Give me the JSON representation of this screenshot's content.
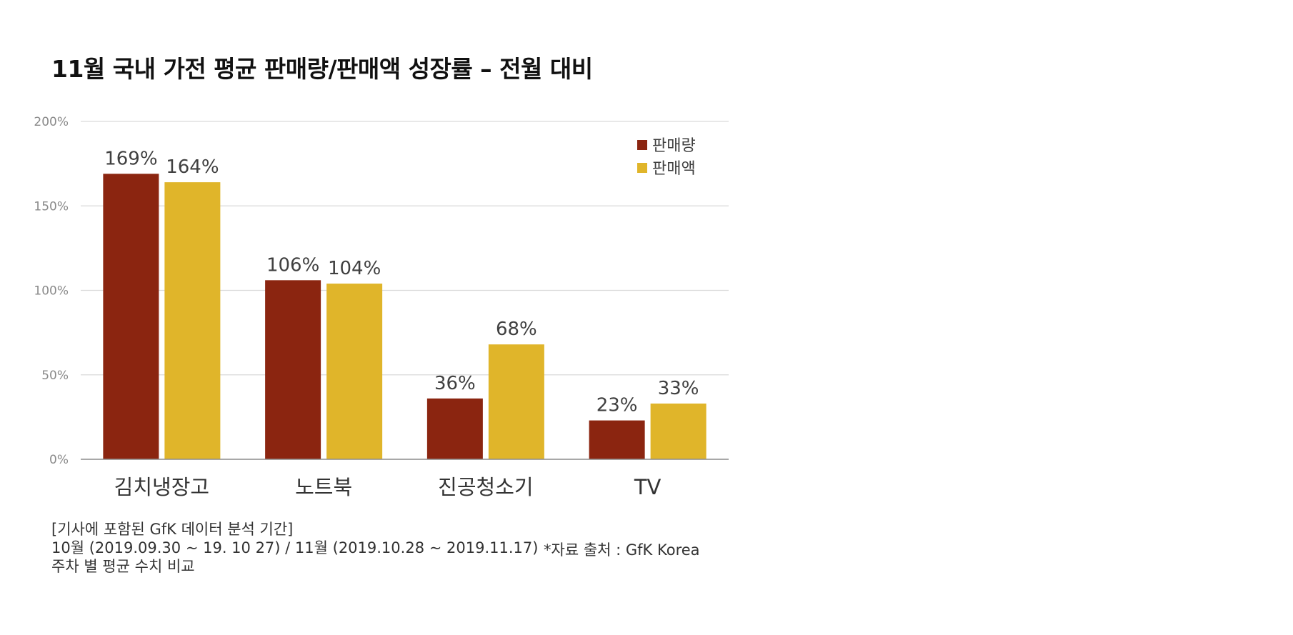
{
  "chart_data": {
    "type": "bar",
    "title": "11월 국내 가전 평균 판매량/판매액 성장률 – 전월 대비",
    "categories": [
      "김치냉장고",
      "노트북",
      "진공청소기",
      "TV"
    ],
    "series": [
      {
        "name": "판매량",
        "values": [
          169,
          106,
          36,
          23
        ],
        "labels": [
          "169%",
          "106%",
          "36%",
          "23%"
        ],
        "color": "#8b2510"
      },
      {
        "name": "판매액",
        "values": [
          164,
          104,
          68,
          33
        ],
        "labels": [
          "164%",
          "104%",
          "68%",
          "33%"
        ],
        "color": "#e0b52a"
      }
    ],
    "ylim": [
      0,
      200
    ],
    "yticks": [
      0,
      50,
      100,
      150,
      200
    ],
    "ytick_labels": [
      "0%",
      "50%",
      "100%",
      "150%",
      "200%"
    ],
    "xlabel": "",
    "ylabel": "",
    "grid": true,
    "legend_position": "top-right"
  },
  "notes": {
    "line1": "[기사에 포함된 GfK 데이터 분석 기간]",
    "line2": "10월 (2019.09.30 ~ 19. 10 27) / 11월 (2019.10.28 ~ 2019.11.17)",
    "line3": "주차 별 평균 수치 비교",
    "source": "*자료 출처 : GfK Korea"
  }
}
